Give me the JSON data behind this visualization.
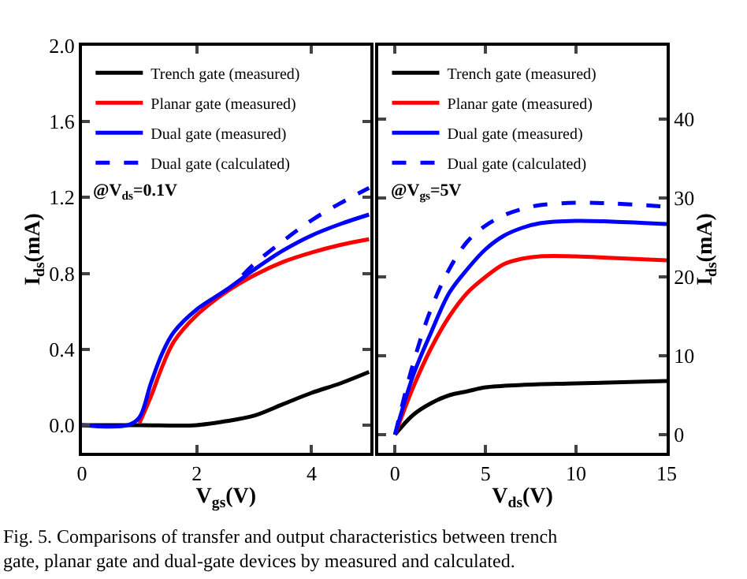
{
  "chart_data": [
    {
      "type": "line",
      "xlabel": "V$_{gs}$(V)",
      "ylabel": "I$_{ds}$(mA)",
      "xlim": [
        0,
        5.02
      ],
      "ylim": [
        -0.146,
        2.0
      ],
      "xticks": [
        0,
        2,
        4
      ],
      "yticks": [
        {
          "value": 0,
          "label": "0.0"
        },
        0.4,
        0.8,
        1.2,
        1.6,
        {
          "value": 2,
          "label": "2.0"
        }
      ],
      "legend": "top left",
      "annotations": [
        "@V$_{ds}$=0.1V",
        "Fig. 5. Comparisons of transfer and output characteristics between trench gate, planar gate and dual-gate devices by measured and calculated."
      ],
      "series": [
        {
          "name": "Trench gate (measured)",
          "color": "#000000",
          "line_style": "solid",
          "x": [
            0,
            1,
            2,
            2.5,
            3,
            3.5,
            4,
            4.5,
            5
          ],
          "values": [
            0,
            0,
            0,
            0.02,
            0.05,
            0.11,
            0.17,
            0.22,
            0.28
          ]
        },
        {
          "name": "Planar gate (measured)",
          "color": "#ff0000",
          "line_style": "solid",
          "x": [
            1.0,
            1.2,
            1.4,
            1.6,
            2,
            2.5,
            3,
            3.5,
            4,
            4.5,
            5
          ],
          "values": [
            0.01,
            0.15,
            0.31,
            0.44,
            0.58,
            0.7,
            0.79,
            0.86,
            0.91,
            0.95,
            0.98
          ]
        },
        {
          "name": "Dual gate (measured)",
          "color": "#0000ff",
          "line_style": "solid",
          "x": [
            0,
            0.8,
            1.0,
            1.2,
            1.4,
            1.6,
            2,
            2.5,
            3,
            3.5,
            4,
            4.5,
            5
          ],
          "values": [
            0,
            0,
            0.04,
            0.22,
            0.38,
            0.49,
            0.61,
            0.71,
            0.82,
            0.92,
            1.0,
            1.06,
            1.11
          ]
        },
        {
          "name": "Dual gate (calculated)",
          "color": "#0000ff",
          "line_style": "dashed",
          "x": [
            2.8,
            3,
            3.5,
            4,
            4.5,
            5
          ],
          "values": [
            0.79,
            0.85,
            0.97,
            1.08,
            1.17,
            1.25
          ]
        }
      ]
    },
    {
      "type": "line",
      "xlabel": "V$_{ds}$(V)",
      "y2label": "I$_{ds}$(mA)",
      "xlim": [
        -0.92,
        15
      ],
      "y2lim": [
        -2.3,
        49.3
      ],
      "xticks": [
        0,
        5,
        10,
        15
      ],
      "y2ticks": [
        0,
        10,
        20,
        30,
        40
      ],
      "legend": "top left",
      "annotations": [
        "@V$_{gs}$=5V"
      ],
      "series": [
        {
          "name": "Trench gate (measured)",
          "color": "#000000",
          "line_style": "solid",
          "axis": "y2",
          "x": [
            0,
            1,
            2,
            3,
            4,
            5,
            7,
            10,
            15
          ],
          "values": [
            0,
            2.5,
            4,
            5,
            5.5,
            6,
            6.3,
            6.5,
            6.8
          ]
        },
        {
          "name": "Planar gate (measured)",
          "color": "#ff0000",
          "line_style": "solid",
          "axis": "y2",
          "x": [
            0,
            1,
            2,
            3,
            4,
            5,
            6,
            7,
            8,
            10,
            12,
            15
          ],
          "values": [
            0,
            6,
            11,
            15,
            18,
            20,
            21.6,
            22.3,
            22.6,
            22.6,
            22.4,
            22.1
          ]
        },
        {
          "name": "Dual gate (measured)",
          "color": "#0000ff",
          "line_style": "solid",
          "axis": "y2",
          "x": [
            0,
            1,
            2,
            3,
            4,
            5,
            6,
            7,
            8,
            10,
            12,
            15
          ],
          "values": [
            0,
            7.5,
            13,
            18,
            21,
            23.5,
            25.2,
            26.2,
            26.8,
            27.1,
            27,
            26.7
          ]
        },
        {
          "name": "Dual gate (calculated)",
          "color": "#0000ff",
          "line_style": "dashed",
          "axis": "y2",
          "x": [
            0,
            1,
            2,
            3,
            4,
            5,
            6,
            7,
            8,
            10,
            12,
            15
          ],
          "values": [
            0,
            9,
            16,
            21,
            24.5,
            26.5,
            27.8,
            28.6,
            29.1,
            29.4,
            29.3,
            28.9
          ]
        }
      ]
    }
  ]
}
